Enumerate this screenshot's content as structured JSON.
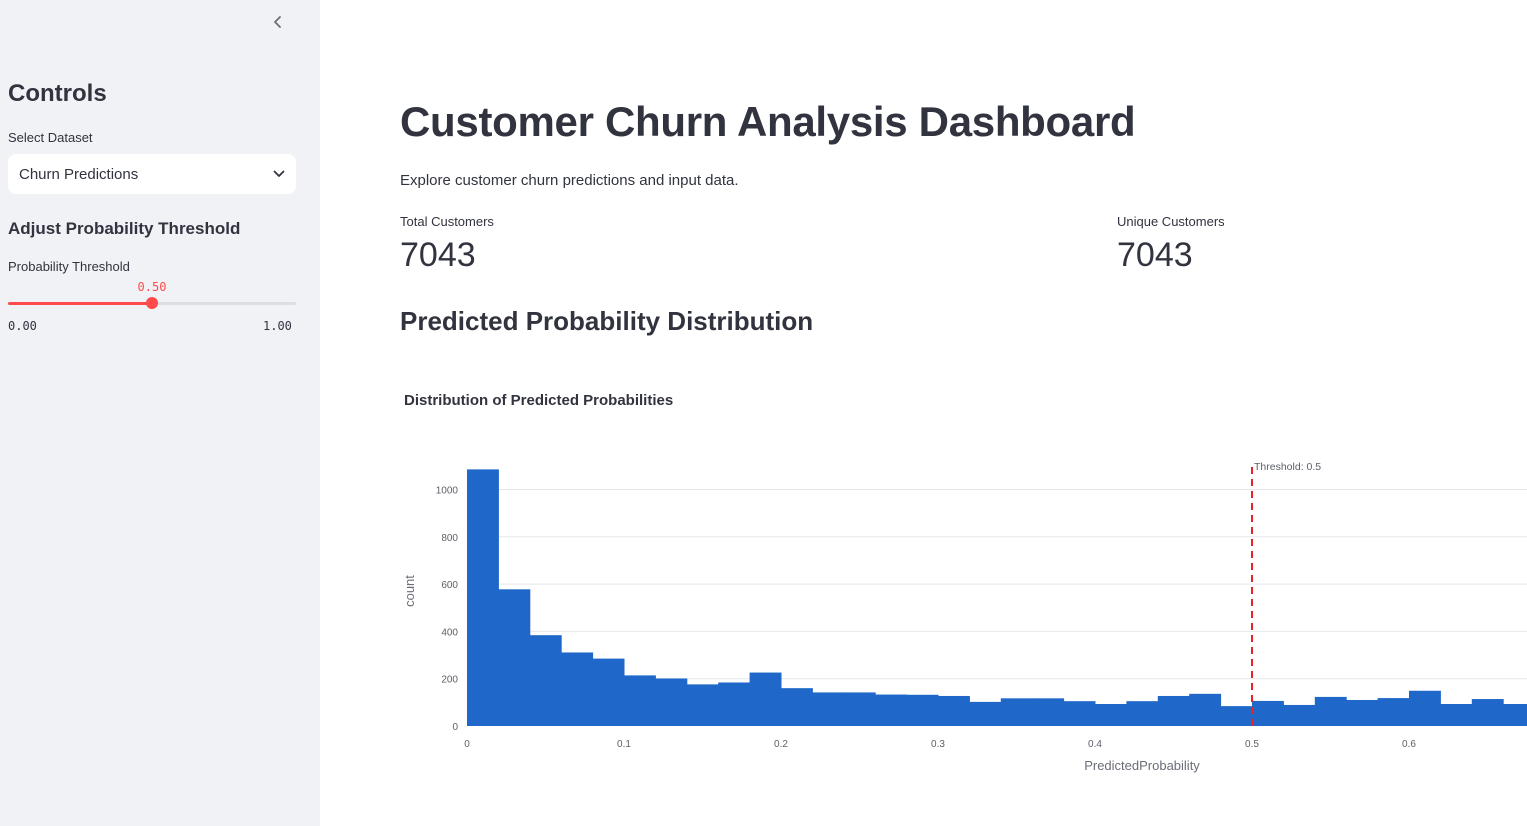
{
  "sidebar": {
    "collapse_icon": "chevron-left-icon",
    "title": "Controls",
    "dataset_label": "Select Dataset",
    "dataset_value": "Churn Predictions",
    "threshold_heading": "Adjust Probability Threshold",
    "slider_label": "Probability Threshold",
    "slider_value": "0.50",
    "slider_fraction": 0.5,
    "slider_min": "0.00",
    "slider_max": "1.00",
    "accent_color": "#ff4b4b"
  },
  "main": {
    "title": "Customer Churn Analysis Dashboard",
    "description": "Explore customer churn predictions and input data.",
    "metrics": [
      {
        "label": "Total Customers",
        "value": "7043"
      },
      {
        "label": "Unique Customers",
        "value": "7043"
      }
    ],
    "section_heading": "Predicted Probability Distribution"
  },
  "chart_data": {
    "type": "bar",
    "title": "Distribution of Predicted Probabilities",
    "xlabel": "PredictedProbability",
    "ylabel": "count",
    "bin_width": 0.02,
    "x_bin_starts": [
      0,
      0.02,
      0.04,
      0.06,
      0.08,
      0.1,
      0.12,
      0.14,
      0.16,
      0.18,
      0.2,
      0.22,
      0.24,
      0.26,
      0.28,
      0.3,
      0.32,
      0.34,
      0.36,
      0.38,
      0.4,
      0.42,
      0.44,
      0.46,
      0.48,
      0.5,
      0.52,
      0.54,
      0.56,
      0.58,
      0.6,
      0.62,
      0.64,
      0.66
    ],
    "values": [
      1085,
      578,
      384,
      311,
      285,
      214,
      201,
      176,
      184,
      226,
      160,
      142,
      142,
      133,
      132,
      127,
      102,
      117,
      117,
      105,
      93,
      105,
      127,
      136,
      84,
      106,
      89,
      123,
      110,
      118,
      149,
      93,
      114,
      93
    ],
    "xlim": [
      0,
      0.68
    ],
    "ylim": [
      0,
      1100
    ],
    "x_ticks": [
      "0",
      "0.1",
      "0.2",
      "0.3",
      "0.4",
      "0.5",
      "0.6"
    ],
    "y_ticks": [
      "0",
      "200",
      "400",
      "600",
      "800",
      "1000"
    ],
    "threshold": 0.5,
    "threshold_label": "Threshold: 0.5",
    "bar_color": "#1f68c9",
    "threshold_color": "#e8222a",
    "grid": true
  }
}
